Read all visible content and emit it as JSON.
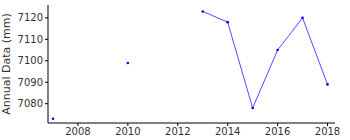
{
  "chart_data": {
    "type": "line",
    "y_label": "Annual Data (mm)",
    "x": [
      2007,
      2008,
      2009,
      2010,
      2011,
      2012,
      2013,
      2014,
      2015,
      2016,
      2017,
      2018
    ],
    "values": [
      7073,
      null,
      null,
      7099,
      null,
      null,
      7123,
      7118,
      7078,
      7105,
      7120,
      7089
    ],
    "color": "#0000ff",
    "marker": "o",
    "xlim": [
      2006.8,
      2018.3
    ],
    "xticks": [
      2008,
      2010,
      2012,
      2014,
      2016,
      2018
    ],
    "ylim": [
      7071,
      7126
    ],
    "yticks": [
      7080,
      7090,
      7100,
      7110,
      7120
    ],
    "grid": false
  }
}
